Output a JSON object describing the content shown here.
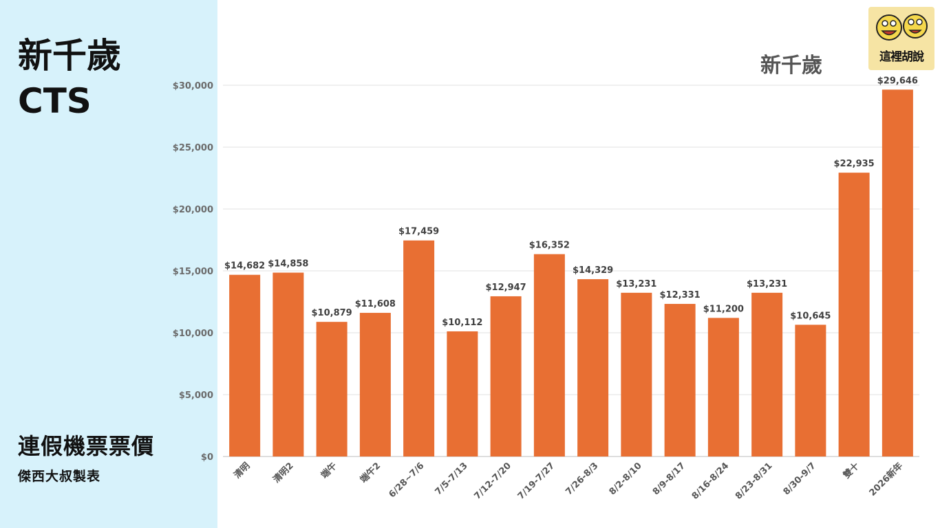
{
  "header": {
    "title_line1": "新千歲",
    "title_line2": "CTS"
  },
  "footer": {
    "subtitle": "連假機票票價",
    "credit": "傑西大叔製表"
  },
  "logo": {
    "text": "這裡胡說"
  },
  "colors": {
    "bar": "#e86f33",
    "panel": "#d7f2fb",
    "grid": "#e0e0e0"
  },
  "chart_data": {
    "type": "bar",
    "title": "新千歲",
    "categories": [
      "清明",
      "清明2",
      "端午",
      "端午2",
      "6/28~7/6",
      "7/5-7/13",
      "7/12-7/20",
      "7/19-7/27",
      "7/26-8/3",
      "8/2-8/10",
      "8/9-8/17",
      "8/16-8/24",
      "8/23-8/31",
      "8/30-9/7",
      "雙十",
      "2026新年"
    ],
    "values": [
      14682,
      14858,
      10879,
      11608,
      17459,
      10112,
      12947,
      16352,
      14329,
      13231,
      12331,
      11200,
      13231,
      10645,
      22935,
      29646
    ],
    "data_labels": [
      "$14,682",
      "$14,858",
      "$10,879",
      "$11,608",
      "$17,459",
      "$10,112",
      "$12,947",
      "$16,352",
      "$14,329",
      "$13,231",
      "$12,331",
      "$11,200",
      "$13,231",
      "$10,645",
      "$22,935",
      "$29,646"
    ],
    "yticks": [
      0,
      5000,
      10000,
      15000,
      20000,
      25000,
      30000
    ],
    "ytick_labels": [
      "$0",
      "$5,000",
      "$10,000",
      "$15,000",
      "$20,000",
      "$25,000",
      "$30,000"
    ],
    "ylim": [
      0,
      30000
    ],
    "grid": true,
    "legend": "none"
  }
}
